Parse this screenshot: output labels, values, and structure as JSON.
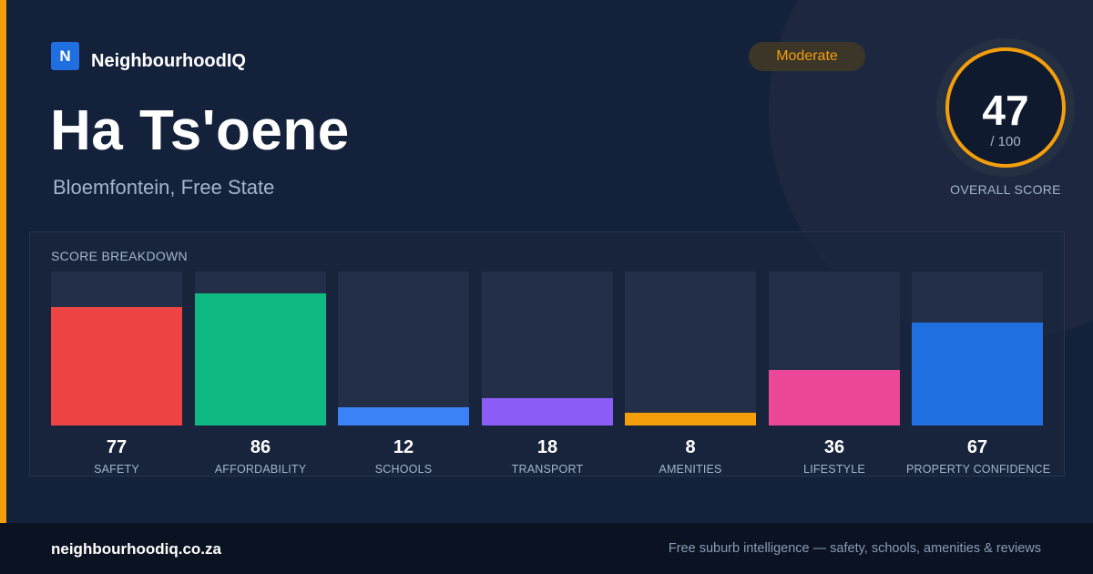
{
  "brand": {
    "logo_letter": "N",
    "name": "NeighbourhoodIQ"
  },
  "suburb": {
    "name": "Ha Ts'oene",
    "location": "Bloemfontein, Free State"
  },
  "badge": {
    "label": "Moderate",
    "color": "#f59e0b"
  },
  "overall": {
    "score": "47",
    "denominator": "/ 100",
    "label": "OVERALL SCORE"
  },
  "breakdown": {
    "title": "SCORE BREAKDOWN",
    "max": 100,
    "items": [
      {
        "label": "SAFETY",
        "value": 77,
        "color": "#ef4444"
      },
      {
        "label": "AFFORDABILITY",
        "value": 86,
        "color": "#10b981"
      },
      {
        "label": "SCHOOLS",
        "value": 12,
        "color": "#3b82f6"
      },
      {
        "label": "TRANSPORT",
        "value": 18,
        "color": "#8b5cf6"
      },
      {
        "label": "AMENITIES",
        "value": 8,
        "color": "#f59e0b"
      },
      {
        "label": "LIFESTYLE",
        "value": 36,
        "color": "#ec4899"
      },
      {
        "label": "PROPERTY CONFIDENCE",
        "value": 67,
        "color": "#1f6fe0"
      }
    ]
  },
  "footer": {
    "domain": "neighbourhoodiq.co.za",
    "tagline": "Free suburb intelligence — safety, schools, amenities & reviews"
  }
}
